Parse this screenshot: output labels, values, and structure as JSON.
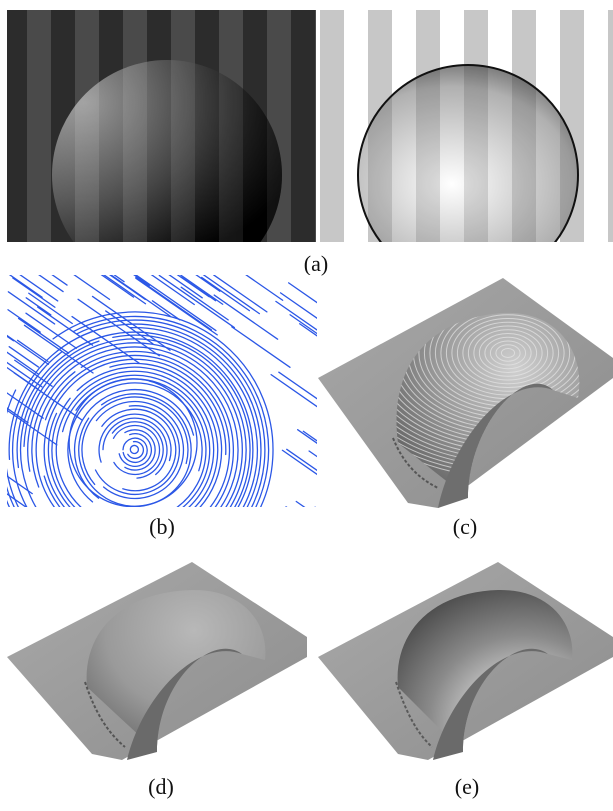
{
  "captions": {
    "a": "(a)",
    "b": "(b)",
    "c": "(c)",
    "d": "(d)",
    "e": "(e)"
  },
  "colors": {
    "stroke_blue": "#2b57e6",
    "surface_gray": "#9b9b9b",
    "dark_stripe": "#333333",
    "light_stripe": "#c7c7c7"
  }
}
